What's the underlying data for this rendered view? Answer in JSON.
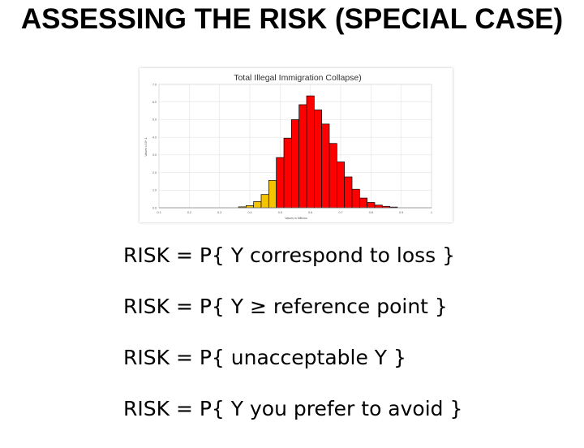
{
  "slide": {
    "title": "ASSESSING THE RISK (SPECIAL CASE)",
    "risk_lines": [
      "RISK = P{ Y correspond to loss }",
      "RISK = P{ Y ≥ reference point }",
      "RISK = P{ unacceptable Y }",
      "RISK = P{ Y you prefer to avoid }"
    ]
  },
  "chart_data": {
    "type": "bar",
    "title": "Total Illegal Immigration Collapse)",
    "xlabel": "Values in Millions",
    "ylabel": "Values x 10^-1",
    "xlim": [
      0.1,
      1.0
    ],
    "ylim": [
      0,
      7
    ],
    "x_ticks": [
      "0.1",
      "0.2",
      "0.3",
      "0.4",
      "0.5",
      "0.6",
      "0.7",
      "0.8",
      "0.9",
      "1"
    ],
    "y_ticks": [
      "0.0",
      "1.0",
      "2.0",
      "3.0",
      "4.0",
      "5.0",
      "6.0",
      "7.0"
    ],
    "grid": true,
    "bin_width": 0.025,
    "threshold": 0.5,
    "colors": {
      "below_threshold": "#f5c400",
      "above_threshold": "#ff0000",
      "bar_outline": "#000000",
      "grid": "#e3e3e3"
    },
    "bins": [
      {
        "x": 0.375,
        "value": 0.05
      },
      {
        "x": 0.4,
        "value": 0.12
      },
      {
        "x": 0.425,
        "value": 0.35
      },
      {
        "x": 0.45,
        "value": 0.75
      },
      {
        "x": 0.475,
        "value": 1.55
      },
      {
        "x": 0.5,
        "value": 2.85
      },
      {
        "x": 0.525,
        "value": 3.95
      },
      {
        "x": 0.55,
        "value": 5.0
      },
      {
        "x": 0.575,
        "value": 5.85
      },
      {
        "x": 0.6,
        "value": 6.35
      },
      {
        "x": 0.625,
        "value": 5.55
      },
      {
        "x": 0.65,
        "value": 4.75
      },
      {
        "x": 0.675,
        "value": 3.65
      },
      {
        "x": 0.7,
        "value": 2.6
      },
      {
        "x": 0.725,
        "value": 1.75
      },
      {
        "x": 0.75,
        "value": 1.05
      },
      {
        "x": 0.775,
        "value": 0.55
      },
      {
        "x": 0.8,
        "value": 0.3
      },
      {
        "x": 0.825,
        "value": 0.15
      },
      {
        "x": 0.85,
        "value": 0.08
      },
      {
        "x": 0.875,
        "value": 0.04
      }
    ]
  }
}
